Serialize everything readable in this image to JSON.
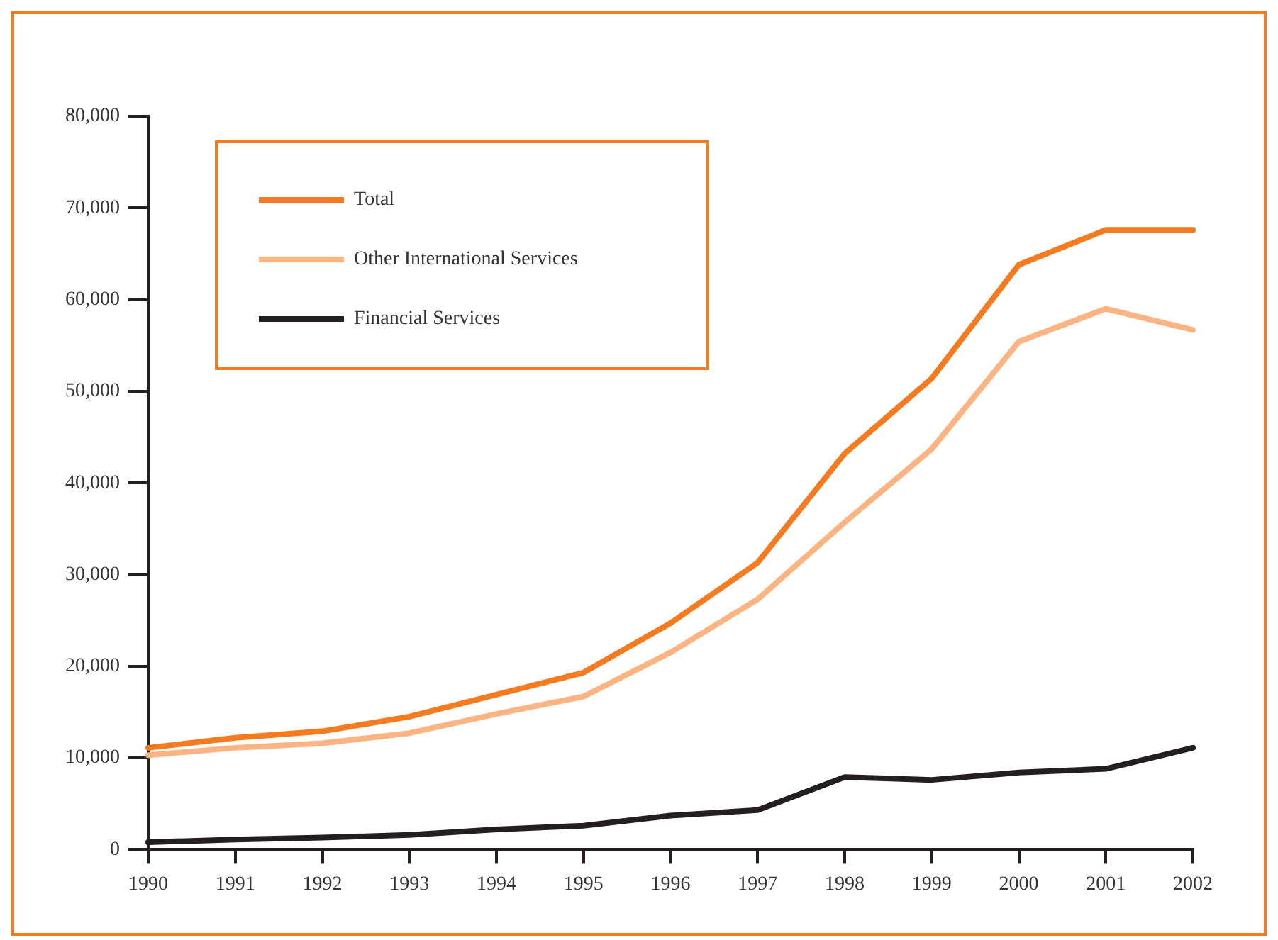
{
  "chart_data": {
    "type": "line",
    "categories": [
      "1990",
      "1991",
      "1992",
      "1993",
      "1994",
      "1995",
      "1996",
      "1997",
      "1998",
      "1999",
      "2000",
      "2001",
      "2002"
    ],
    "series": [
      {
        "name": "Total",
        "color": "#f47b20",
        "values": [
          11100,
          12200,
          12900,
          14500,
          16900,
          19300,
          24700,
          31300,
          43200,
          51400,
          63800,
          67600,
          67600
        ]
      },
      {
        "name": "Other International Services",
        "color": "#fbb482",
        "values": [
          10300,
          11100,
          11600,
          12700,
          14800,
          16700,
          21500,
          27300,
          35700,
          43700,
          55400,
          59000,
          56700
        ]
      },
      {
        "name": "Financial Services",
        "color": "#231f20",
        "values": [
          800,
          1100,
          1300,
          1600,
          2200,
          2600,
          3700,
          4300,
          7900,
          7600,
          8400,
          8800,
          11100
        ]
      }
    ],
    "ylim": [
      0,
      80000
    ],
    "yticks": [
      {
        "value": 0,
        "label": "0"
      },
      {
        "value": 10000,
        "label": "10,000"
      },
      {
        "value": 20000,
        "label": "20,000"
      },
      {
        "value": 30000,
        "label": "30,000"
      },
      {
        "value": 40000,
        "label": "40,000"
      },
      {
        "value": 50000,
        "label": "50,000"
      },
      {
        "value": 60000,
        "label": "60,000"
      },
      {
        "value": 70000,
        "label": "70,000"
      },
      {
        "value": 80000,
        "label": "80,000"
      }
    ],
    "grid": false,
    "legend": "top left",
    "marker": "none",
    "line_style": "solid"
  }
}
